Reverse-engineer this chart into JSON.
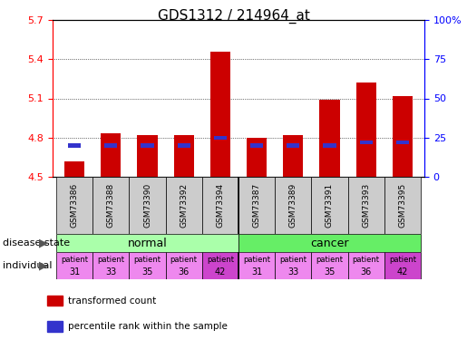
{
  "title": "GDS1312 / 214964_at",
  "samples": [
    "GSM73386",
    "GSM73388",
    "GSM73390",
    "GSM73392",
    "GSM73394",
    "GSM73387",
    "GSM73389",
    "GSM73391",
    "GSM73393",
    "GSM73395"
  ],
  "transformed_counts": [
    4.62,
    4.83,
    4.82,
    4.82,
    5.46,
    4.8,
    4.82,
    5.09,
    5.22,
    5.12
  ],
  "percentile_ranks": [
    20,
    20,
    20,
    20,
    25,
    20,
    20,
    20,
    22,
    22
  ],
  "ylim": [
    4.5,
    5.7
  ],
  "yticks": [
    4.5,
    4.8,
    5.1,
    5.4,
    5.7
  ],
  "ytick_labels": [
    "4.5",
    "4.8",
    "5.1",
    "5.4",
    "5.7"
  ],
  "right_yticks": [
    0,
    25,
    50,
    75,
    100
  ],
  "right_ytick_labels": [
    "0",
    "25",
    "50",
    "75",
    "100%"
  ],
  "bar_color": "#cc0000",
  "blue_color": "#3333cc",
  "bar_bottom": 4.5,
  "disease_groups": [
    {
      "label": "normal",
      "start": 0,
      "end": 5,
      "color": "#aaffaa"
    },
    {
      "label": "cancer",
      "start": 5,
      "end": 10,
      "color": "#66ee66"
    }
  ],
  "individual_colors": [
    "#ee88ee",
    "#ee88ee",
    "#ee88ee",
    "#ee88ee",
    "#cc44cc",
    "#ee88ee",
    "#ee88ee",
    "#ee88ee",
    "#ee88ee",
    "#cc44cc"
  ],
  "individual_numbers": [
    "31",
    "33",
    "35",
    "36",
    "42",
    "31",
    "33",
    "35",
    "36",
    "42"
  ],
  "sample_bg_color": "#cccccc",
  "legend_red_label": "transformed count",
  "legend_blue_label": "percentile rank within the sample",
  "title_fontsize": 11,
  "tick_fontsize": 8,
  "disease_fontsize": 9,
  "grid_color": "#000000"
}
